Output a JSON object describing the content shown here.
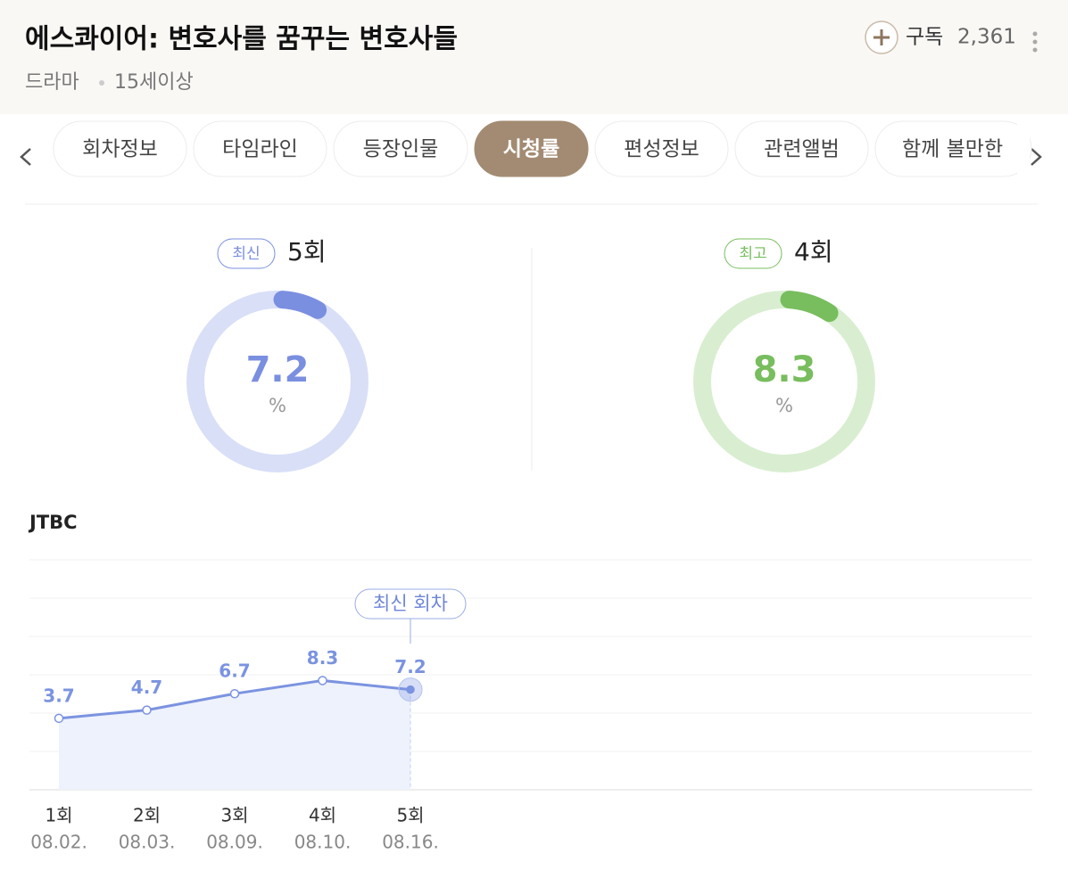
{
  "header": {
    "title": "에스콰이어: 변호사를 꿈꾸는 변호사들",
    "genre": "드라마",
    "age": "15세이상",
    "subscribe": "구독",
    "subscribers": "2,361"
  },
  "tabs": [
    "회차정보",
    "타임라인",
    "등장인물",
    "시청률",
    "편성정보",
    "관련앨범",
    "함께 볼만한"
  ],
  "active_tab": 3,
  "summary": [
    {
      "badge": "최신",
      "episode": "5회",
      "value": 7.2,
      "unit": "%",
      "color": "#7b8fe0",
      "track": "#d9dff7"
    },
    {
      "badge": "최고",
      "episode": "4회",
      "value": 8.3,
      "unit": "%",
      "color": "#78bd5e",
      "track": "#d9eed1"
    }
  ],
  "chart_data": {
    "type": "line",
    "title": "JTBC",
    "categories": [
      "1회",
      "2회",
      "3회",
      "4회",
      "5회"
    ],
    "dates": [
      "08.02.",
      "08.03.",
      "08.09.",
      "08.10.",
      "08.16."
    ],
    "values": [
      3.7,
      4.7,
      6.7,
      8.3,
      7.2
    ],
    "color": "#7b93e0",
    "ylim": [
      -5,
      23
    ],
    "annotation": "최신 회차"
  }
}
